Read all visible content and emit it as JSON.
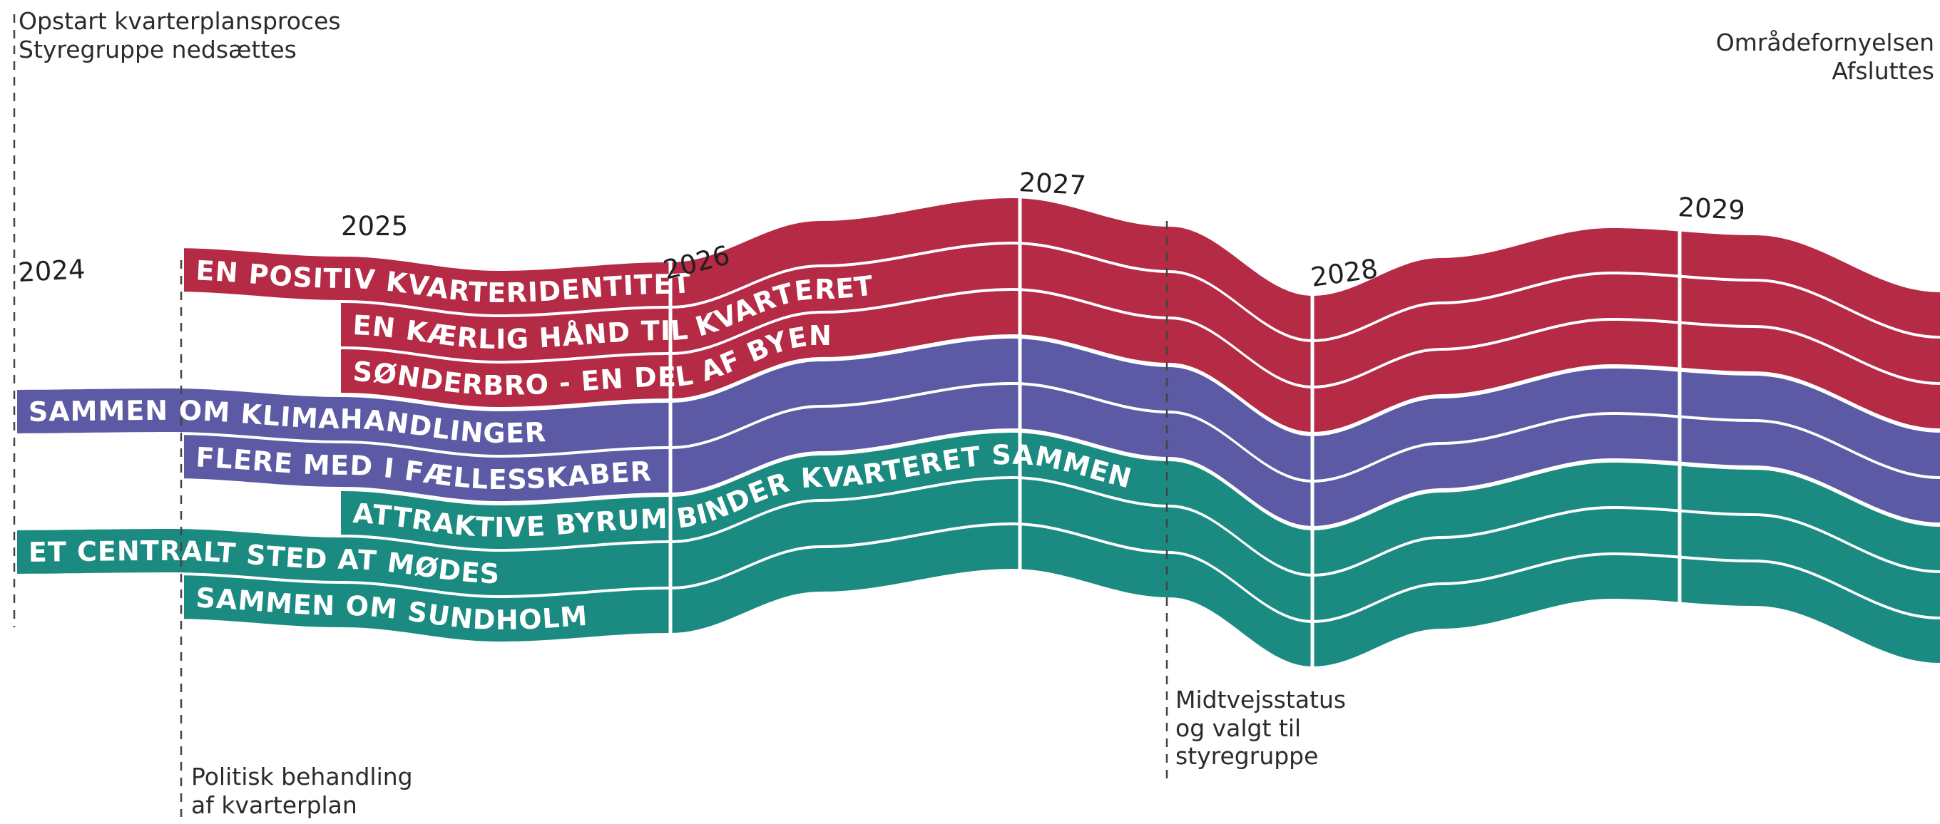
{
  "milestones": {
    "start": {
      "line1": "Opstart kvarterplansproces",
      "line2": "Styregruppe nedsættes"
    },
    "political": {
      "line1": "Politisk behandling",
      "line2": "af kvarterplan"
    },
    "midway": {
      "line1": "Midtvejsstatus",
      "line2": "og valgt til",
      "line3": "styregruppe"
    },
    "end": {
      "line1": "Områdefornyelsen",
      "line2": "Afsluttes"
    }
  },
  "years": [
    "2024",
    "2025",
    "2026",
    "2027",
    "2028",
    "2029"
  ],
  "bands": [
    {
      "label": "EN POSITIV KVARTERIDENTITET",
      "color": "#b52a45"
    },
    {
      "label": "EN KÆRLIG HÅND TIL KVARTERET",
      "color": "#b52a45"
    },
    {
      "label": "SØNDERBRO - EN DEL AF BYEN",
      "color": "#b52a45"
    },
    {
      "label": "SAMMEN OM KLIMAHANDLINGER",
      "color": "#5c5aa4"
    },
    {
      "label": "FLERE MED I FÆLLESSKABER",
      "color": "#5c5aa4"
    },
    {
      "label": "ATTRAKTIVE BYRUM BINDER KVARTERET SAMMEN",
      "color": "#1b8a80"
    },
    {
      "label": "ET CENTRALT STED AT MØDES",
      "color": "#1b8a80"
    },
    {
      "label": "SAMMEN OM SUNDHOLM",
      "color": "#1b8a80"
    }
  ]
}
